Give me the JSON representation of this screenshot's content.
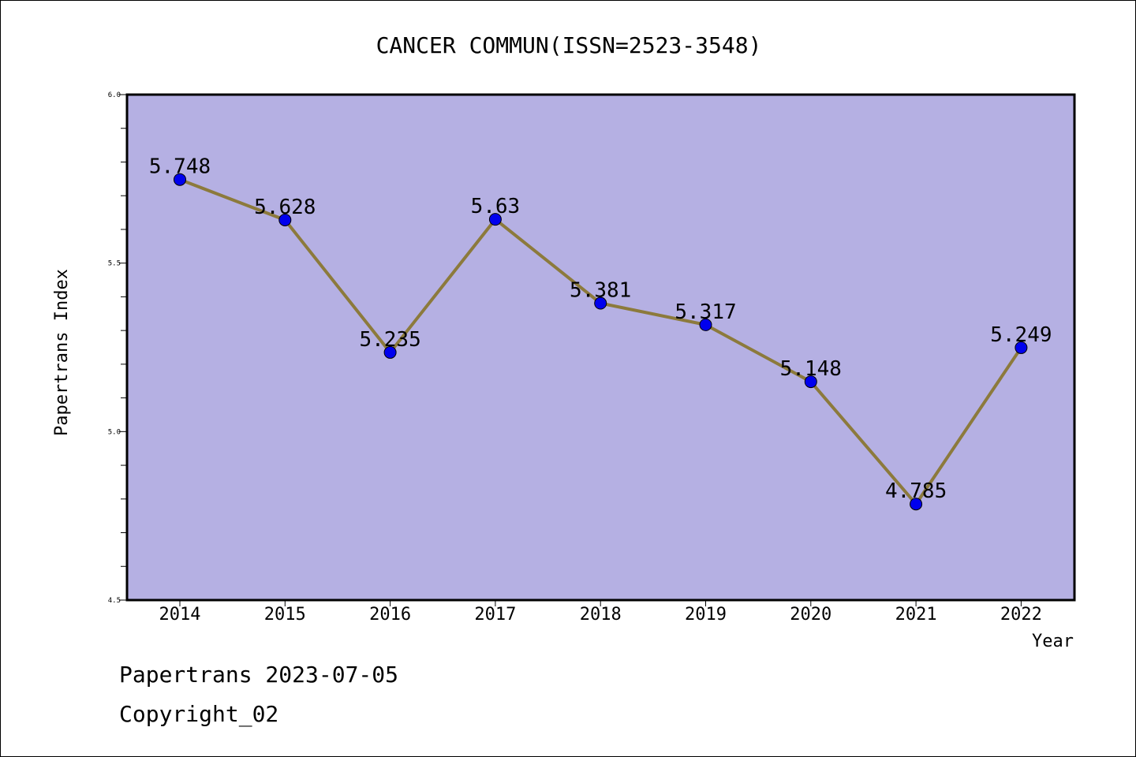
{
  "chart_data": {
    "type": "line",
    "title": "CANCER COMMUN(ISSN=2523-3548)",
    "xlabel": "Year",
    "ylabel": "Papertrans Index",
    "categories": [
      "2014",
      "2015",
      "2016",
      "2017",
      "2018",
      "2019",
      "2020",
      "2021",
      "2022"
    ],
    "values": [
      5.748,
      5.628,
      5.235,
      5.63,
      5.381,
      5.317,
      5.148,
      4.785,
      5.249
    ],
    "data_labels": [
      "5.748",
      "5.628",
      "5.235",
      "5.63",
      "5.381",
      "5.317",
      "5.148",
      "4.785",
      "5.249"
    ],
    "ylim": [
      4.5,
      6.0
    ],
    "yticks": [
      "4.5",
      "5.0",
      "5.5",
      "6.0"
    ],
    "grid": false,
    "colors": {
      "plot_background": "#b5b0e3",
      "line": "#8c7a3c",
      "marker": "#0000ee"
    }
  },
  "footer": {
    "line1": "Papertrans 2023-07-05",
    "line2": "Copyright_02"
  }
}
